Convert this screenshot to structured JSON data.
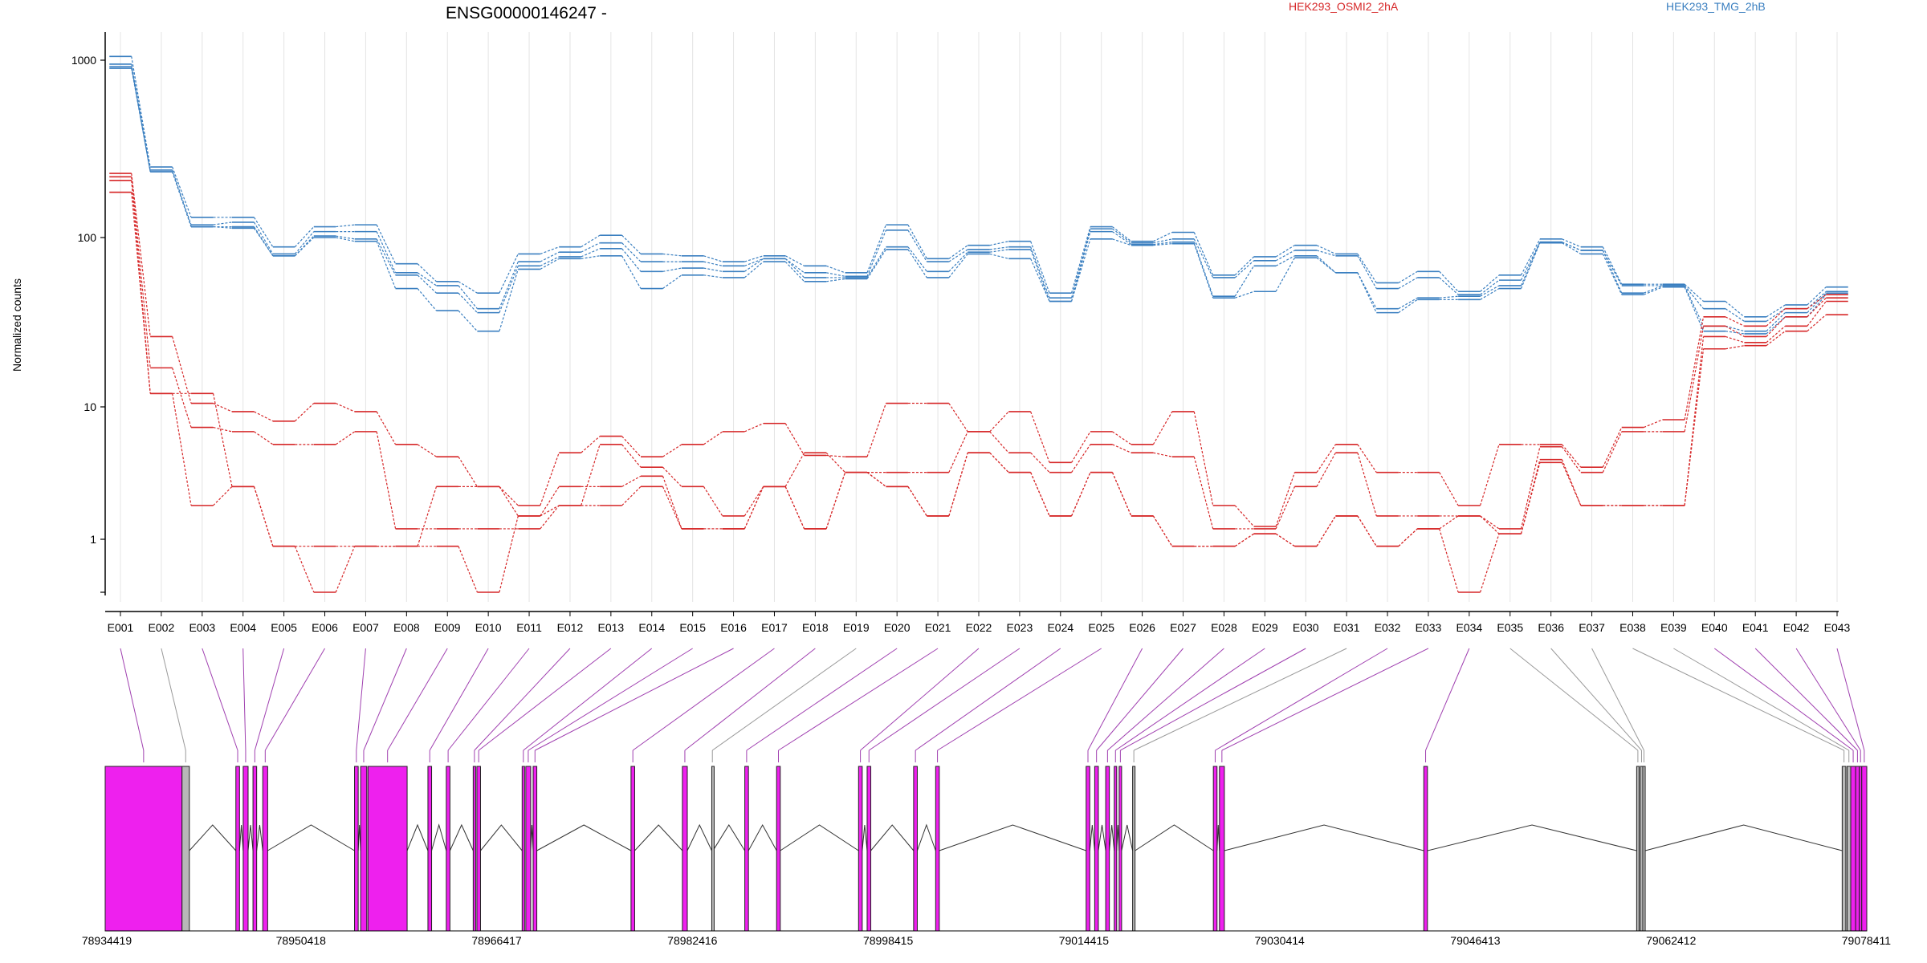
{
  "chart_data": {
    "type": "line",
    "title": "ENSG00000146247 -",
    "ylabel": "Normalized counts",
    "y_scale": "log",
    "ylim": [
      0.4,
      1500
    ],
    "grid": "vertical only",
    "legend_placement": "top-right",
    "y_ticks": [
      "1",
      "10",
      "100",
      "1000"
    ],
    "y_tick_values": [
      1,
      10,
      100,
      1000
    ],
    "categories": [
      "E001",
      "E002",
      "E003",
      "E004",
      "E005",
      "E006",
      "E007",
      "E008",
      "E009",
      "E010",
      "E011",
      "E012",
      "E013",
      "E014",
      "E015",
      "E016",
      "E017",
      "E018",
      "E019",
      "E020",
      "E021",
      "E022",
      "E023",
      "E024",
      "E025",
      "E026",
      "E027",
      "E028",
      "E029",
      "E030",
      "E031",
      "E032",
      "E033",
      "E034",
      "E035",
      "E036",
      "E037",
      "E038",
      "E039",
      "E040",
      "E041",
      "E042",
      "E043"
    ],
    "legend": [
      {
        "name": "HEK293_OSMI2_2hA",
        "color": "#d62728"
      },
      {
        "name": "HEK293_TMG_2hB",
        "color": "#3a7fc0"
      }
    ],
    "series": [
      {
        "group": "HEK293_TMG_2hB",
        "color": "#3a7fc0",
        "values": [
          1050,
          250,
          130,
          130,
          88,
          115,
          118,
          70,
          55,
          47,
          80,
          88,
          103,
          80,
          78,
          72,
          78,
          68,
          62,
          118,
          75,
          90,
          95,
          47,
          115,
          95,
          107,
          60,
          77,
          90,
          80,
          54,
          63,
          48,
          60,
          98,
          88,
          53,
          53,
          42,
          34,
          40,
          51
        ]
      },
      {
        "group": "HEK293_TMG_2hB",
        "color": "#3a7fc0",
        "values": [
          950,
          240,
          118,
          122,
          80,
          108,
          108,
          62,
          52,
          38,
          72,
          82,
          93,
          72,
          72,
          68,
          75,
          62,
          59,
          110,
          72,
          85,
          88,
          44,
          112,
          93,
          98,
          58,
          73,
          84,
          78,
          50,
          58,
          46,
          56,
          94,
          84,
          52,
          52,
          38,
          32,
          38,
          48
        ]
      },
      {
        "group": "HEK293_TMG_2hB",
        "color": "#3a7fc0",
        "values": [
          920,
          235,
          115,
          115,
          78,
          102,
          98,
          60,
          47,
          36,
          68,
          77,
          86,
          63,
          66,
          63,
          75,
          58,
          58,
          88,
          63,
          82,
          85,
          42,
          108,
          91,
          94,
          45,
          68,
          78,
          62,
          38,
          44,
          45,
          52,
          94,
          84,
          47,
          52,
          30,
          28,
          36,
          47
        ]
      },
      {
        "group": "HEK293_TMG_2hB",
        "color": "#3a7fc0",
        "values": [
          900,
          235,
          115,
          113,
          78,
          100,
          95,
          50,
          37,
          28,
          65,
          75,
          78,
          50,
          60,
          58,
          72,
          55,
          57,
          85,
          58,
          80,
          75,
          42,
          98,
          90,
          92,
          44,
          48,
          76,
          62,
          36,
          43,
          43,
          50,
          93,
          80,
          46,
          51,
          28,
          27,
          34,
          46
        ]
      },
      {
        "group": "HEK293_OSMI2_2hA",
        "color": "#d62728",
        "values": [
          230,
          26,
          10.5,
          9.2,
          7.8,
          10.5,
          9.2,
          5.2,
          4.2,
          2.5,
          1.8,
          4.5,
          6,
          4.2,
          5.2,
          6.5,
          7.5,
          4.3,
          4.2,
          10.5,
          10.5,
          6.5,
          9.2,
          3.8,
          6.5,
          5.2,
          9.2,
          1.8,
          1.25,
          3.2,
          5.2,
          3.2,
          3.2,
          1.8,
          5.2,
          5.2,
          3.5,
          7,
          8,
          34,
          30,
          38,
          46
        ]
      },
      {
        "group": "HEK293_OSMI2_2hA",
        "color": "#d62728",
        "values": [
          220,
          17,
          7,
          6.5,
          5.2,
          5.2,
          6.5,
          1.2,
          1.2,
          1.2,
          1.2,
          1.8,
          5.2,
          3.5,
          2.5,
          1.5,
          2.5,
          1.2,
          3.2,
          3.2,
          3.2,
          6.5,
          4.5,
          3.2,
          5.2,
          4.5,
          4.2,
          1.2,
          1.2,
          2.5,
          4.5,
          1.5,
          1.5,
          1.5,
          1.2,
          5,
          3.2,
          6.5,
          6.5,
          30,
          26,
          34,
          44
        ]
      },
      {
        "group": "HEK293_OSMI2_2hA",
        "color": "#d62728",
        "values": [
          210,
          12,
          12,
          2.5,
          0.9,
          0.9,
          0.9,
          0.9,
          2.5,
          2.5,
          1.5,
          2.5,
          2.5,
          3,
          1.2,
          1.2,
          2.5,
          4.5,
          3.2,
          2.5,
          1.5,
          4.5,
          3.2,
          1.5,
          3.2,
          1.5,
          0.9,
          0.9,
          1.1,
          0.9,
          1.5,
          0.9,
          1.2,
          1.5,
          1.1,
          4,
          1.8,
          1.8,
          1.8,
          26,
          24,
          30,
          42
        ]
      },
      {
        "group": "HEK293_OSMI2_2hA",
        "color": "#d62728",
        "values": [
          180,
          12,
          1.8,
          2.5,
          0.9,
          0.45,
          0.9,
          0.9,
          0.9,
          0.45,
          1.5,
          1.8,
          1.8,
          2.5,
          1.2,
          1.2,
          2.5,
          1.2,
          3.2,
          2.5,
          1.5,
          4.5,
          3.2,
          1.5,
          3.2,
          1.5,
          0.9,
          0.9,
          1.1,
          0.9,
          1.5,
          0.9,
          1.2,
          0.45,
          1.1,
          3.8,
          1.8,
          1.8,
          1.8,
          22,
          23,
          28,
          35
        ]
      }
    ],
    "gene_model": {
      "coordinate_labels": [
        "78934419",
        "78950418",
        "78966417",
        "78982416",
        "78998415",
        "79014415",
        "79030414",
        "79046413",
        "79062412",
        "79078411"
      ],
      "coordinate_values": [
        78934419,
        78950418,
        78966417,
        78982416,
        78998415,
        79014415,
        79030414,
        79046413,
        79062412,
        79078411
      ],
      "exon_color": "#ee20ee",
      "connector_color": "#a040b0"
    }
  }
}
